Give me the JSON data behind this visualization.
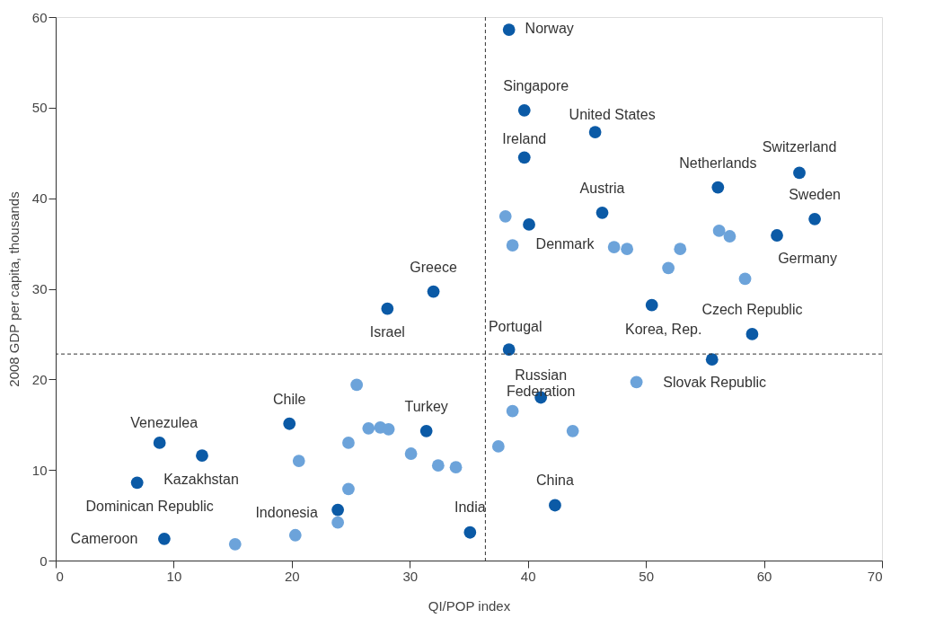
{
  "chart_data": {
    "type": "scatter",
    "xlabel": "QI/POP index",
    "ylabel": "2008 GDP per capita, thousands",
    "xlim": [
      0,
      70
    ],
    "ylim": [
      0,
      60
    ],
    "xticks": [
      0,
      10,
      20,
      30,
      40,
      50,
      60,
      70
    ],
    "yticks": [
      0,
      10,
      20,
      30,
      40,
      50,
      60
    ],
    "grid": false,
    "marker": "circle",
    "series": [
      {
        "color": "#0b5aa6",
        "x": [
          38.4,
          39.7,
          45.7,
          39.7,
          63.0,
          56.1,
          64.3,
          46.3,
          40.1,
          61.1,
          32.0,
          28.1,
          50.5,
          59.0,
          38.4,
          55.6,
          41.1,
          19.8,
          8.8,
          12.4,
          6.9,
          31.4,
          23.9,
          35.1,
          42.3,
          9.2
        ],
        "values": [
          58.6,
          49.7,
          47.3,
          44.5,
          42.8,
          41.2,
          37.7,
          38.4,
          37.1,
          35.9,
          29.7,
          27.8,
          28.2,
          25.0,
          23.3,
          22.2,
          18.0,
          15.1,
          13.0,
          11.6,
          8.6,
          14.3,
          5.6,
          3.1,
          6.1,
          2.4
        ]
      },
      {
        "color": "#6ca3da",
        "x": [
          38.1,
          38.7,
          47.3,
          48.4,
          56.2,
          57.1,
          52.9,
          51.9,
          58.4,
          49.2,
          25.5,
          38.7,
          43.8,
          37.5,
          26.5,
          27.5,
          28.2,
          24.8,
          30.1,
          20.6,
          32.4,
          33.9,
          24.8,
          23.9,
          20.3,
          15.2
        ],
        "values": [
          38.0,
          34.8,
          34.6,
          34.4,
          36.4,
          35.8,
          34.4,
          32.3,
          31.1,
          19.7,
          19.4,
          16.5,
          14.3,
          12.6,
          14.6,
          14.7,
          14.5,
          13.0,
          11.8,
          11.0,
          10.5,
          10.3,
          7.9,
          4.2,
          2.8,
          1.8
        ]
      }
    ],
    "ref_lines": [
      {
        "axis": "x",
        "value": 36.4,
        "line_style": "dashed",
        "color": "#333333"
      },
      {
        "axis": "y",
        "value": 22.8,
        "line_style": "dashed",
        "color": "#333333"
      }
    ],
    "annotations": [
      {
        "text": "Norway",
        "x": 38.4,
        "y": 58.6
      },
      {
        "text": "Singapore",
        "x": 39.7,
        "y": 49.7
      },
      {
        "text": "United States",
        "x": 45.7,
        "y": 47.3
      },
      {
        "text": "Ireland",
        "x": 39.7,
        "y": 44.5
      },
      {
        "text": "Switzerland",
        "x": 63.0,
        "y": 42.8
      },
      {
        "text": "Netherlands",
        "x": 56.1,
        "y": 41.2
      },
      {
        "text": "Sweden",
        "x": 64.3,
        "y": 37.7
      },
      {
        "text": "Austria",
        "x": 46.3,
        "y": 38.4
      },
      {
        "text": "Denmark",
        "x": 40.1,
        "y": 37.1
      },
      {
        "text": "Germany",
        "x": 61.1,
        "y": 35.9
      },
      {
        "text": "Greece",
        "x": 32.0,
        "y": 29.7
      },
      {
        "text": "Israel",
        "x": 28.1,
        "y": 27.8
      },
      {
        "text": "Korea, Rep.",
        "x": 50.5,
        "y": 28.2
      },
      {
        "text": "Czech Republic",
        "x": 59.0,
        "y": 25.0
      },
      {
        "text": "Portugal",
        "x": 38.4,
        "y": 23.3
      },
      {
        "text": "Russian\nFederation",
        "x": 41.1,
        "y": 18.0
      },
      {
        "text": "Slovak Republic",
        "x": 49.2,
        "y": 19.7
      },
      {
        "text": "Chile",
        "x": 19.8,
        "y": 15.1
      },
      {
        "text": "Turkey",
        "x": 31.4,
        "y": 14.3
      },
      {
        "text": "Venezulea",
        "x": 8.8,
        "y": 13.0
      },
      {
        "text": "Kazakhstan",
        "x": 12.4,
        "y": 11.6
      },
      {
        "text": "Dominican Republic",
        "x": 6.9,
        "y": 8.6
      },
      {
        "text": "Indonesia",
        "x": 23.9,
        "y": 5.6
      },
      {
        "text": "India",
        "x": 35.1,
        "y": 3.1
      },
      {
        "text": "China",
        "x": 42.3,
        "y": 6.1
      },
      {
        "text": "Cameroon",
        "x": 9.2,
        "y": 2.4
      }
    ]
  }
}
